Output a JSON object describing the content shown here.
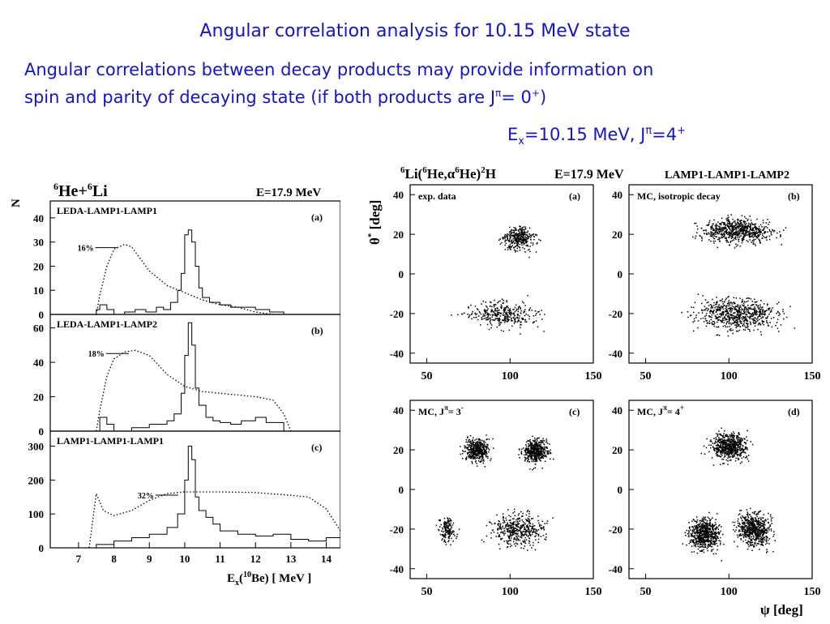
{
  "slide": {
    "title": "Angular correlation analysis for 10.15 MeV state",
    "intro_line1": "Angular correlations between decay products may provide information on",
    "intro_line2_a": "spin and parity of decaying state (if both products are J",
    "intro_line2_pi": "π",
    "intro_line2_b": "= 0",
    "intro_line2_plus": "+",
    "intro_line2_c": ")",
    "ex_E": "E",
    "ex_sub": "x",
    "ex_mid": "=10.15 MeV, J",
    "ex_pi": "π",
    "ex_end": "=4",
    "ex_plus": "+"
  },
  "left_figure": {
    "reaction_a": "6",
    "reaction_b": "He+",
    "reaction_c": "6",
    "reaction_d": "Li",
    "energy": "E=17.9 MeV",
    "ylabel": "N",
    "xlabel_a": "E",
    "xlabel_b": "x",
    "xlabel_c": "(",
    "xlabel_d": "10",
    "xlabel_e": "Be)  [ MeV ]",
    "x_ticks": [
      "7",
      "8",
      "9",
      "10",
      "11",
      "12",
      "13",
      "14"
    ],
    "panels": [
      {
        "name": "LEDA-LAMP1-LAMP1",
        "tag": "(a)",
        "pct": "16%",
        "y_ticks": [
          "0",
          "10",
          "20",
          "30",
          "40"
        ]
      },
      {
        "name": "LEDA-LAMP1-LAMP2",
        "tag": "(b)",
        "pct": "18%",
        "y_ticks": [
          "0",
          "20",
          "40",
          "60"
        ]
      },
      {
        "name": "LAMP1-LAMP1-LAMP1",
        "tag": "(c)",
        "pct": "32%",
        "y_ticks": [
          "0",
          "100",
          "200",
          "300"
        ]
      }
    ]
  },
  "right_figure": {
    "reaction_a": "6",
    "reaction_b": "Li(",
    "reaction_c": "6",
    "reaction_d": "He,α",
    "reaction_e": "6",
    "reaction_f": "He)",
    "reaction_g": "2",
    "reaction_h": "H",
    "energy": "E=17.9 MeV",
    "setup": "LAMP1-LAMP1-LAMP2",
    "ylabel_a": "θ",
    "ylabel_b": "*",
    "ylabel_c": " [deg]",
    "xlabel": "ψ [deg]",
    "x_ticks": [
      "50",
      "100",
      "150"
    ],
    "y_ticks": [
      "40",
      "20",
      "0",
      "-20",
      "-40"
    ],
    "panels": [
      {
        "label": "exp. data",
        "tag": "(a)"
      },
      {
        "label": "MC, isotropic decay",
        "tag": "(b)"
      },
      {
        "label": "MC, J",
        "sup": "π",
        "value": "= 3",
        "sup2": "-",
        "tag": "(c)"
      },
      {
        "label": "MC, J",
        "sup": "π",
        "value": "= 4",
        "sup2": "+",
        "tag": "(d)"
      }
    ]
  },
  "chart_data": [
    {
      "type": "line",
      "title": "",
      "xlabel": "Ex(10Be) [MeV]",
      "ylabel": "N",
      "xlim": [
        6.2,
        14.4
      ],
      "panels": [
        {
          "name": "LEDA-LAMP1-LAMP1",
          "ylim": [
            0,
            45
          ],
          "series": [
            {
              "x": [
                7.2,
                7.5,
                7.6,
                7.8,
                8.0,
                8.3,
                8.6,
                8.9,
                9.2,
                9.4,
                9.6,
                9.8,
                9.9,
                10.0,
                10.1,
                10.2,
                10.3,
                10.4,
                10.5,
                10.7,
                11.0,
                11.3,
                11.6,
                12.0,
                12.4,
                12.8
              ],
              "y": [
                0,
                2,
                4,
                2,
                0,
                1,
                2,
                1,
                3,
                2,
                5,
                10,
                17,
                33,
                35,
                30,
                20,
                11,
                7,
                5,
                4,
                3,
                3,
                2,
                1,
                0
              ]
            },
            {
              "x": [
                7.5,
                7.6,
                7.8,
                8.0,
                8.3,
                8.5,
                8.7,
                9.0,
                9.5,
                10.0,
                10.5,
                11.0,
                11.5,
                12.0,
                12.5
              ],
              "y": [
                0,
                8,
                20,
                27,
                29,
                28,
                24,
                18,
                12,
                9,
                6,
                4,
                3,
                1,
                0
              ]
            }
          ]
        },
        {
          "name": "LEDA-LAMP1-LAMP2",
          "ylim": [
            0,
            65
          ],
          "series": [
            {
              "x": [
                7.2,
                7.6,
                7.8,
                8.0,
                8.5,
                9.0,
                9.5,
                9.7,
                9.9,
                10.0,
                10.1,
                10.2,
                10.3,
                10.4,
                10.6,
                10.8,
                11.0,
                11.3,
                11.6,
                12.0,
                12.3,
                12.8
              ],
              "y": [
                0,
                8,
                4,
                0,
                2,
                4,
                6,
                10,
                22,
                44,
                63,
                50,
                25,
                15,
                8,
                6,
                5,
                4,
                6,
                8,
                5,
                0
              ]
            },
            {
              "x": [
                7.5,
                7.6,
                7.8,
                8.0,
                8.3,
                8.6,
                9.0,
                9.5,
                10.0,
                10.5,
                11.0,
                11.5,
                12.0,
                12.5,
                12.8,
                13.0
              ],
              "y": [
                0,
                12,
                32,
                42,
                46,
                47,
                44,
                33,
                26,
                23,
                22,
                21,
                20,
                18,
                10,
                0
              ]
            }
          ]
        },
        {
          "name": "LAMP1-LAMP1-LAMP1",
          "ylim": [
            0,
            330
          ],
          "series": [
            {
              "x": [
                7.0,
                7.5,
                8.0,
                8.5,
                9.0,
                9.5,
                9.8,
                10.0,
                10.1,
                10.2,
                10.3,
                10.4,
                10.6,
                10.8,
                11.0,
                11.5,
                12.0,
                12.5,
                13.0,
                13.5,
                14.0,
                14.4
              ],
              "y": [
                0,
                10,
                20,
                30,
                40,
                60,
                100,
                200,
                300,
                260,
                150,
                110,
                90,
                70,
                50,
                40,
                35,
                40,
                25,
                20,
                30,
                70
              ]
            },
            {
              "x": [
                7.3,
                7.5,
                7.7,
                8.0,
                8.5,
                9.0,
                9.5,
                10.0,
                10.5,
                11.0,
                12.0,
                13.0,
                13.5,
                14.0,
                14.4
              ],
              "y": [
                0,
                160,
                110,
                95,
                110,
                140,
                160,
                165,
                165,
                165,
                163,
                155,
                150,
                115,
                50
              ]
            }
          ]
        }
      ]
    },
    {
      "type": "scatter",
      "title": "",
      "xlabel": "ψ [deg]",
      "ylabel": "θ* [deg]",
      "xlim": [
        40,
        150
      ],
      "ylim": [
        -45,
        45
      ],
      "panels": [
        {
          "name": "exp. data",
          "clusters": [
            {
              "center": [
                105,
                18
              ],
              "spread": [
                14,
                8
              ]
            },
            {
              "center": [
                95,
                -20
              ],
              "spread": [
                32,
                10
              ]
            }
          ]
        },
        {
          "name": "MC, isotropic decay",
          "clusters": [
            {
              "center": [
                105,
                22
              ],
              "spread": [
                30,
                9
              ]
            },
            {
              "center": [
                105,
                -20
              ],
              "spread": [
                38,
                12
              ]
            }
          ]
        },
        {
          "name": "MC, J^π = 3^-",
          "clusters": [
            {
              "center": [
                80,
                20
              ],
              "spread": [
                11,
                9
              ]
            },
            {
              "center": [
                115,
                20
              ],
              "spread": [
                11,
                9
              ]
            },
            {
              "center": [
                105,
                -20
              ],
              "spread": [
                24,
                12
              ]
            },
            {
              "center": [
                62,
                -20
              ],
              "spread": [
                8,
                9
              ]
            }
          ]
        },
        {
          "name": "MC, J^π = 4^+",
          "clusters": [
            {
              "center": [
                100,
                22
              ],
              "spread": [
                16,
                10
              ]
            },
            {
              "center": [
                85,
                -22
              ],
              "spread": [
                13,
                12
              ]
            },
            {
              "center": [
                115,
                -20
              ],
              "spread": [
                14,
                12
              ]
            }
          ]
        }
      ]
    }
  ]
}
